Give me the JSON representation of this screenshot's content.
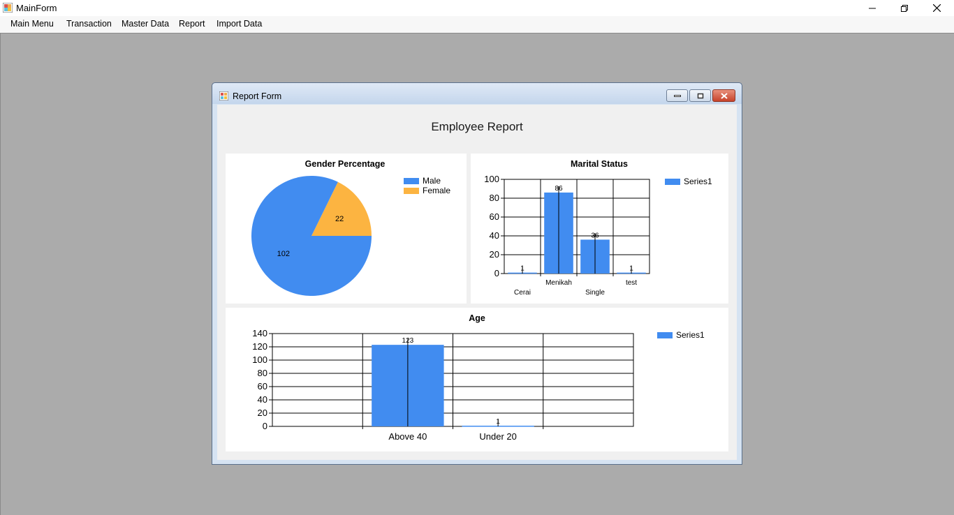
{
  "app": {
    "title": "MainForm"
  },
  "window_controls": {
    "minimize": "minimize-icon",
    "restore": "restore-icon",
    "close": "close-icon"
  },
  "menu": {
    "items": [
      "Main Menu",
      "Transaction",
      "Master Data",
      "Report",
      "Import Data"
    ]
  },
  "report_form": {
    "title": "Report Form",
    "heading": "Employee Report"
  },
  "colors": {
    "blue": "#418cf0",
    "orange": "#fcb441",
    "mdi_background": "#ababab"
  },
  "chart_data": [
    {
      "type": "pie",
      "title": "Gender Percentage",
      "categories": [
        "Male",
        "Female"
      ],
      "values": [
        102,
        22
      ],
      "colors": [
        "#418cf0",
        "#fcb441"
      ],
      "legend": "top-right"
    },
    {
      "type": "bar",
      "title": "Marital Status",
      "categories": [
        "Cerai",
        "Menikah",
        "Single",
        "test"
      ],
      "series": [
        {
          "name": "Series1",
          "values": [
            1,
            86,
            36,
            1
          ]
        }
      ],
      "ylim": [
        0,
        100
      ],
      "yticks": [
        0,
        20,
        40,
        60,
        80,
        100
      ],
      "grid": true,
      "legend": "top-right"
    },
    {
      "type": "bar",
      "title": "Age",
      "categories": [
        "Above 40",
        "Under 20"
      ],
      "series": [
        {
          "name": "Series1",
          "values": [
            123,
            1
          ]
        }
      ],
      "ylim": [
        0,
        140
      ],
      "yticks": [
        0,
        20,
        40,
        60,
        80,
        100,
        120,
        140
      ],
      "grid": true,
      "legend": "top-right"
    }
  ]
}
